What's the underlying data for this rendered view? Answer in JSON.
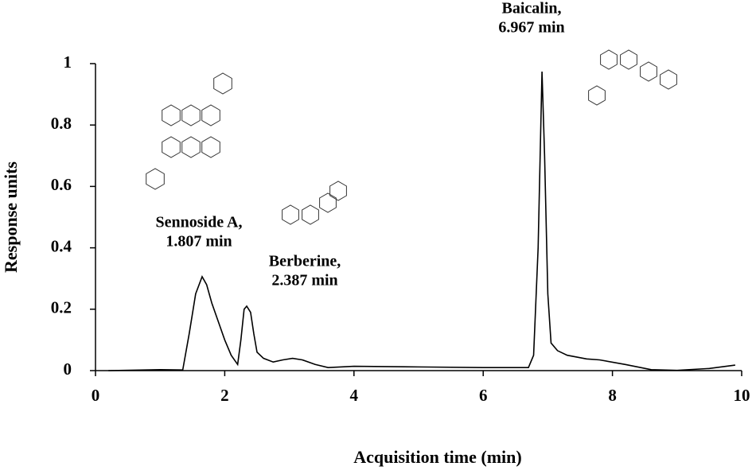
{
  "chart_data": {
    "type": "line",
    "xlabel": "Acquisition time (min)",
    "ylabel": "Response units",
    "x": [
      0.2,
      1.0,
      1.35,
      1.45,
      1.55,
      1.65,
      1.72,
      1.8,
      1.9,
      2.0,
      2.1,
      2.2,
      2.25,
      2.3,
      2.34,
      2.4,
      2.45,
      2.5,
      2.6,
      2.75,
      2.9,
      3.05,
      3.2,
      3.4,
      3.6,
      4.0,
      5.0,
      6.0,
      6.7,
      6.78,
      6.85,
      6.91,
      6.95,
      7.0,
      7.05,
      7.15,
      7.3,
      7.6,
      7.8,
      8.2,
      8.6,
      9.0,
      9.5,
      9.9
    ],
    "values": [
      0.0,
      0.003,
      0.002,
      0.12,
      0.25,
      0.306,
      0.28,
      0.22,
      0.16,
      0.1,
      0.05,
      0.02,
      0.1,
      0.2,
      0.21,
      0.19,
      0.12,
      0.06,
      0.04,
      0.028,
      0.035,
      0.04,
      0.035,
      0.02,
      0.01,
      0.014,
      0.012,
      0.01,
      0.01,
      0.05,
      0.4,
      0.974,
      0.7,
      0.25,
      0.09,
      0.065,
      0.05,
      0.038,
      0.035,
      0.02,
      0.003,
      0.001,
      0.007,
      0.018
    ],
    "color": "#000000",
    "xlim": [
      0,
      10
    ],
    "xticks": [
      0,
      2,
      4,
      6,
      8,
      10
    ],
    "ylim": [
      0,
      1
    ],
    "yticks": [
      0,
      0.2,
      0.4,
      0.6,
      0.8,
      1
    ],
    "annotations": [
      [
        "Sennoside A,",
        "1.807 min"
      ],
      [
        "Berberine,",
        "2.387 min"
      ],
      [
        "Baicalin,",
        "6.967 min"
      ]
    ]
  }
}
